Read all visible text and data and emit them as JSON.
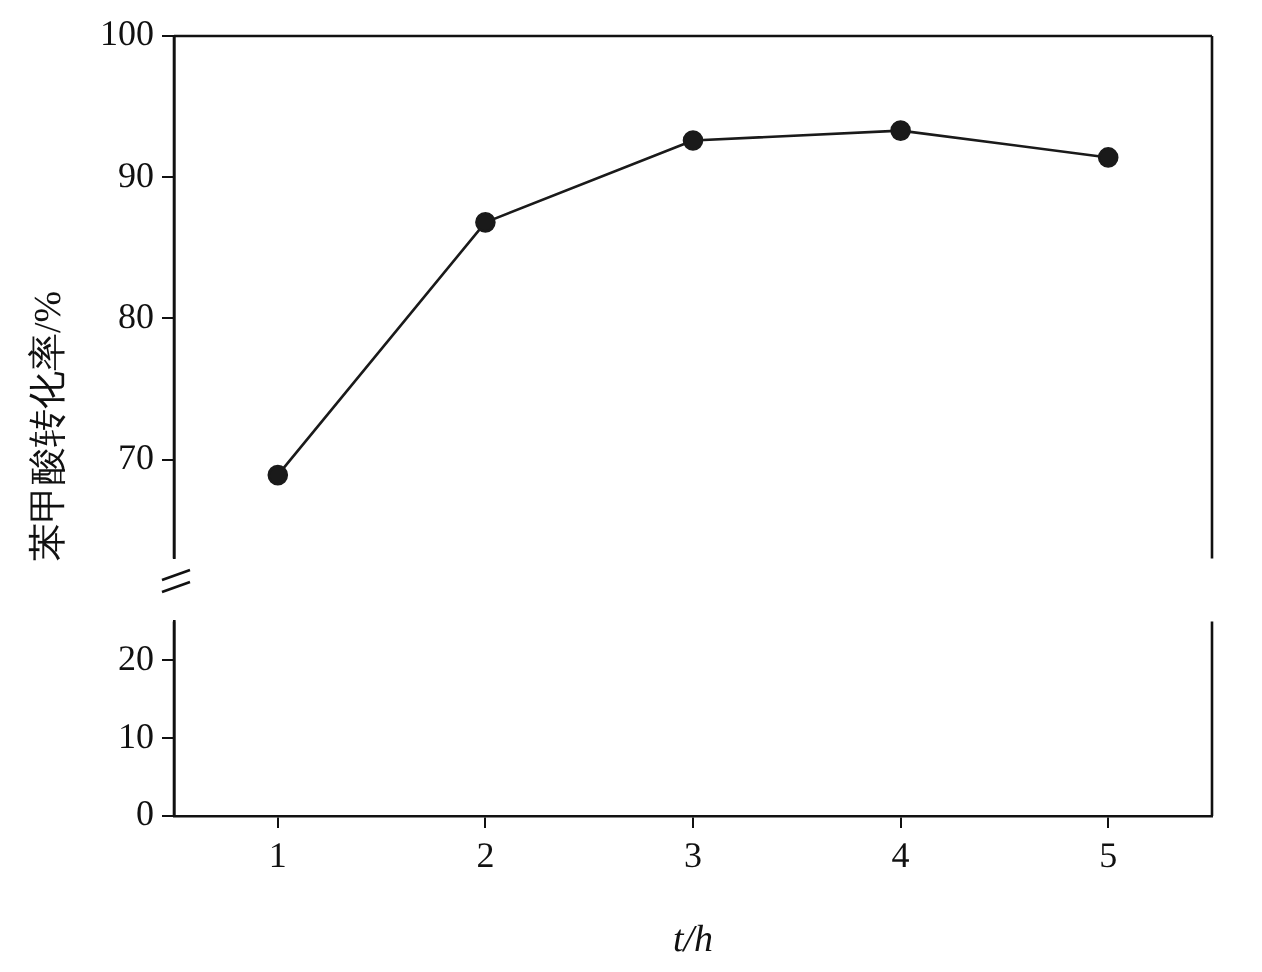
{
  "chart_data": [
    {
      "type": "line",
      "ylabel": "苯甲酸转化率/%",
      "categories": [
        "1",
        "2",
        "3",
        "4",
        "5"
      ],
      "values": [
        68.9,
        86.8,
        92.6,
        93.3,
        91.4
      ],
      "color": "#1a1a1a",
      "marker": "circle",
      "ylim": [
        63,
        100
      ],
      "yticks": [
        70,
        80,
        90,
        100
      ],
      "tick_labels": "y",
      "grid": false
    },
    {
      "type": "line",
      "xlabel": "t/h",
      "categories": [
        "1",
        "2",
        "3",
        "4",
        "5"
      ],
      "values": [
        null,
        null,
        null,
        null,
        null
      ],
      "color": "#1a1a1a",
      "ylim": [
        0,
        25
      ],
      "yticks": [
        0,
        10,
        20
      ],
      "grid": false
    }
  ]
}
